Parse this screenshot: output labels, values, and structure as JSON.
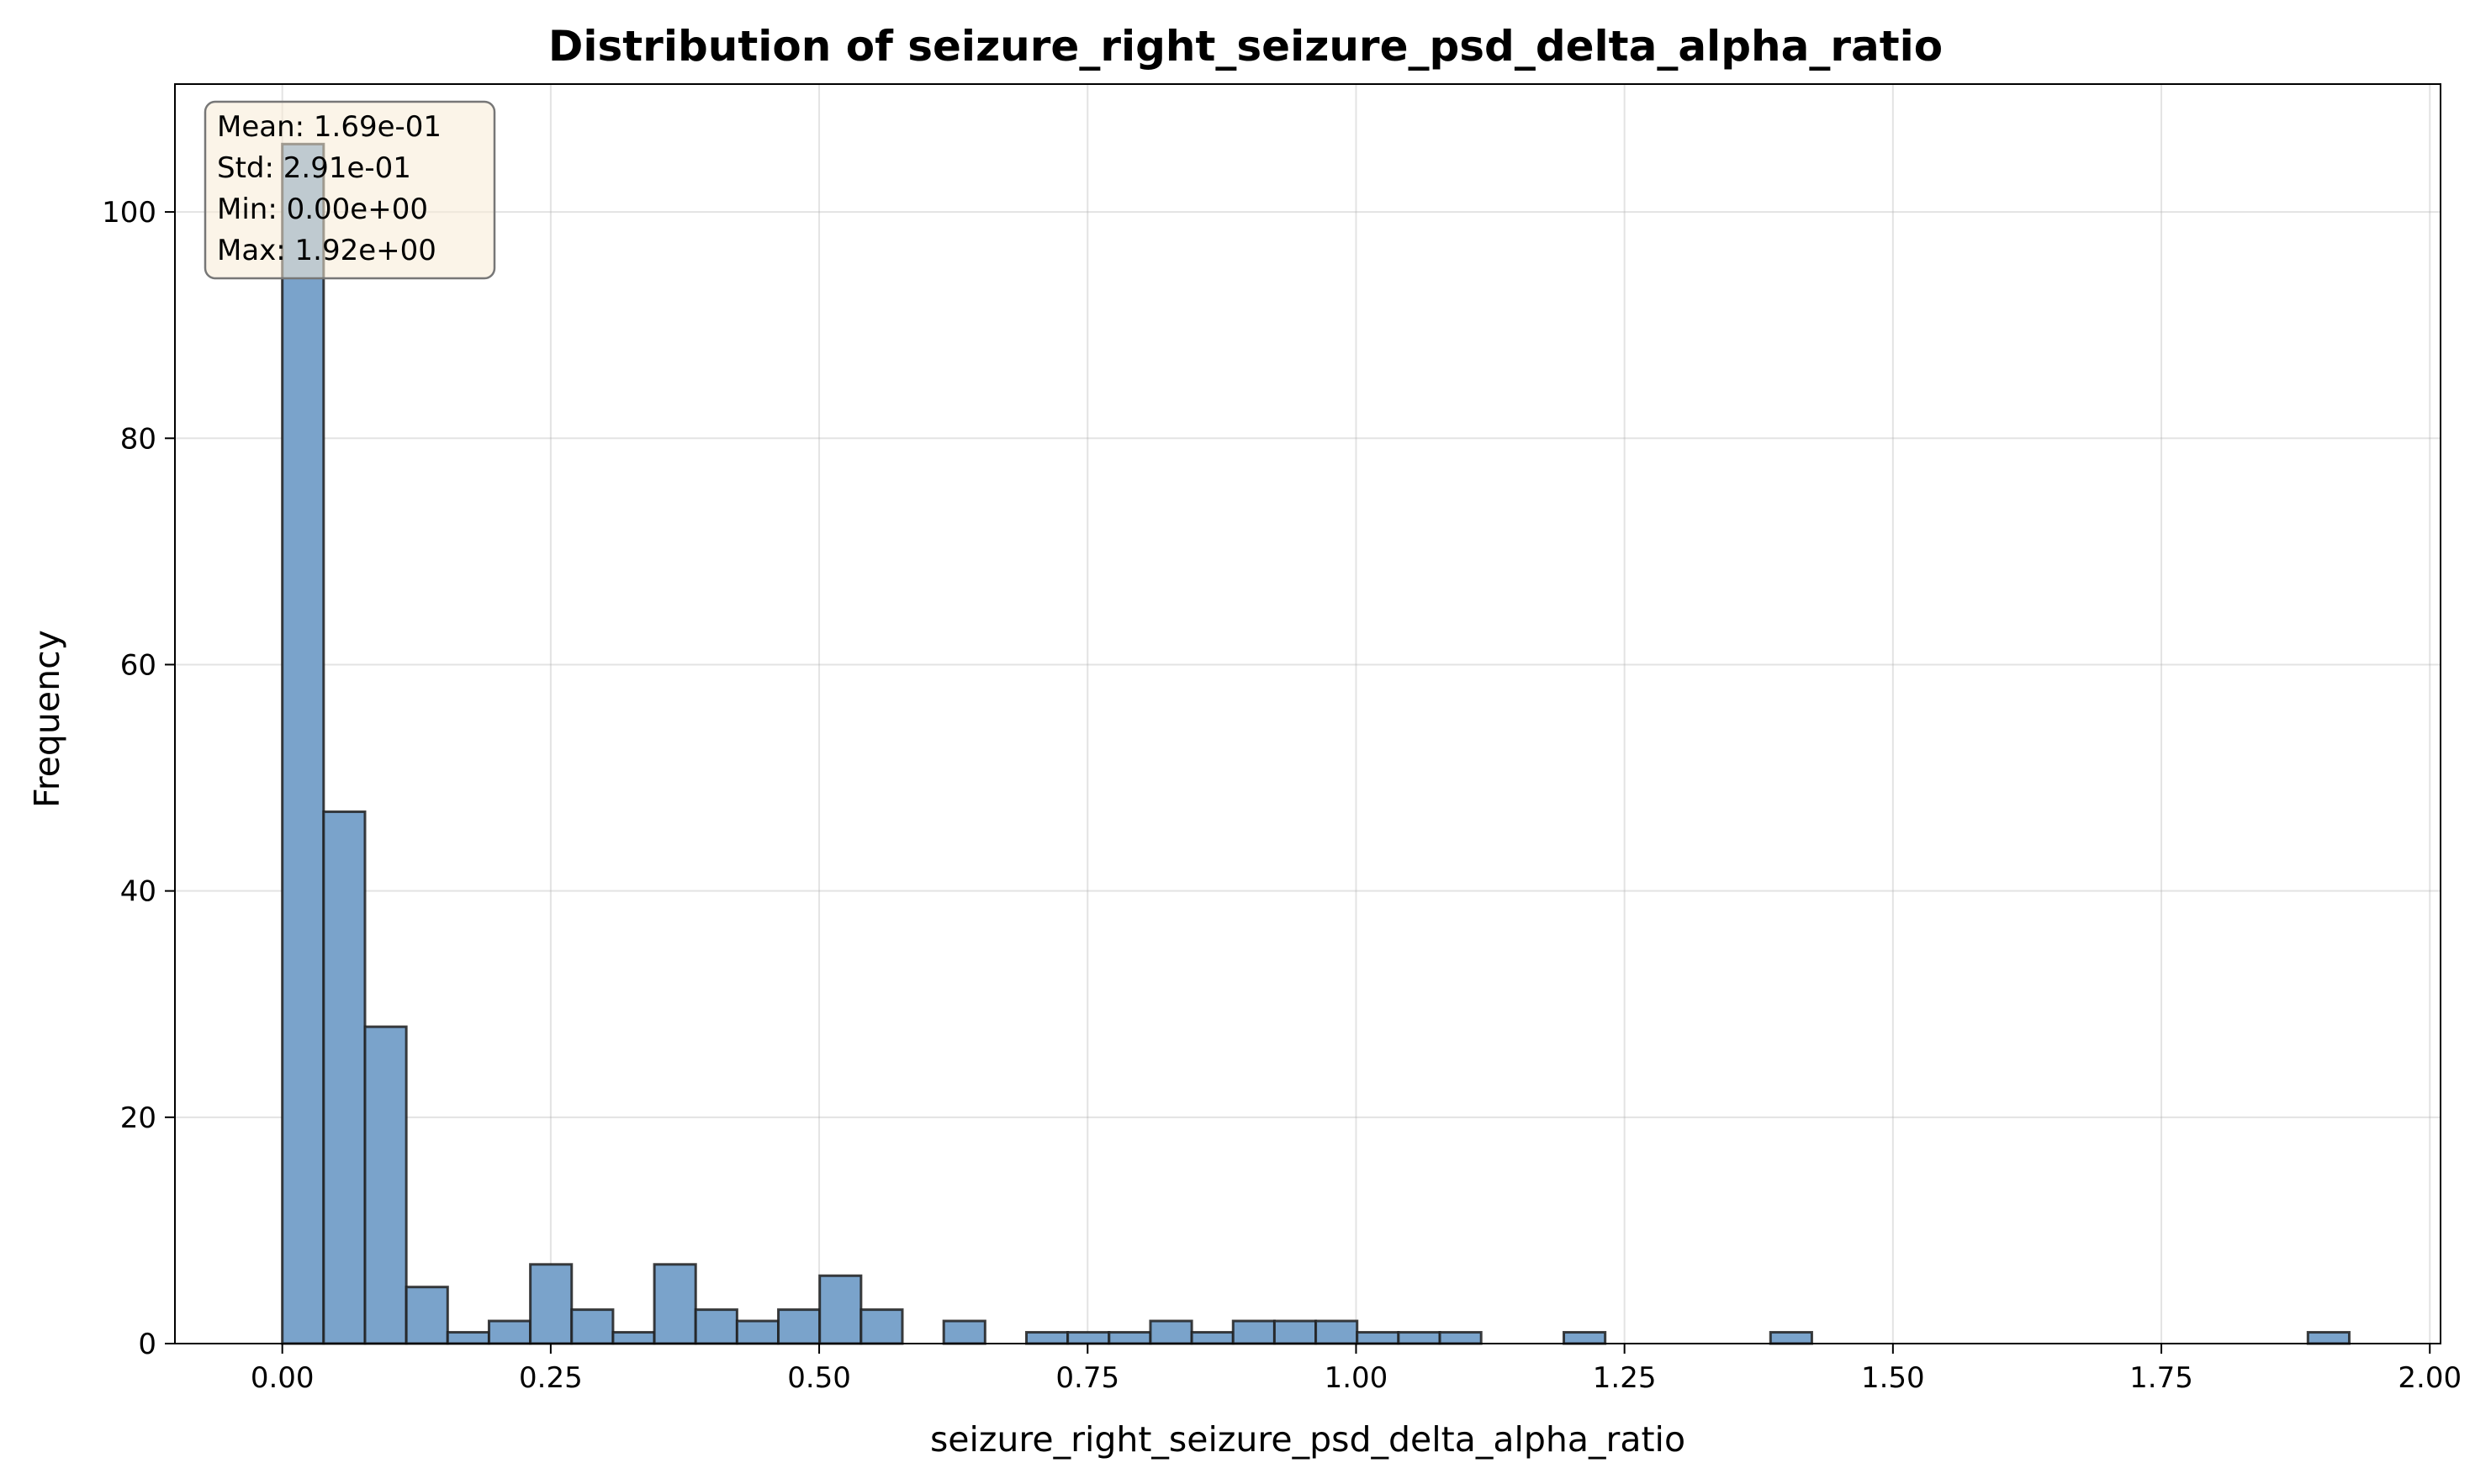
{
  "chart_data": {
    "type": "bar",
    "title": "Distribution of seizure_right_seizure_psd_delta_alpha_ratio",
    "xlabel": "seizure_right_seizure_psd_delta_alpha_ratio",
    "ylabel": "Frequency",
    "xlim": [
      -0.1,
      2.01
    ],
    "ylim": [
      0,
      111.3
    ],
    "xticks": [
      0.0,
      0.25,
      0.5,
      0.75,
      1.0,
      1.25,
      1.5,
      1.75,
      2.0
    ],
    "xtick_labels": [
      "0.00",
      "0.25",
      "0.50",
      "0.75",
      "1.00",
      "1.25",
      "1.50",
      "1.75",
      "2.00"
    ],
    "yticks": [
      0,
      20,
      40,
      60,
      80,
      100
    ],
    "ytick_labels": [
      "0",
      "20",
      "40",
      "60",
      "80",
      "100"
    ],
    "grid": true,
    "bin_start": 0.0,
    "bin_width": 0.0385,
    "values": [
      106,
      47,
      28,
      5,
      1,
      2,
      7,
      3,
      1,
      7,
      3,
      2,
      3,
      6,
      3,
      0,
      2,
      0,
      1,
      1,
      1,
      2,
      1,
      2,
      2,
      2,
      1,
      1,
      1,
      0,
      0,
      1,
      0,
      0,
      0,
      0,
      1,
      0,
      0,
      0,
      0,
      0,
      0,
      0,
      0,
      0,
      0,
      0,
      0,
      1
    ],
    "bar_color": "#7aa3cb",
    "edge_color": "#1f1f1f",
    "stats_box": {
      "lines": [
        "Mean: 1.69e-01",
        "Std: 2.91e-01",
        "Min: 0.00e+00",
        "Max: 1.92e+00"
      ],
      "placement": "top-left",
      "fill": "#f7ebd5",
      "edge": "#777777"
    }
  }
}
